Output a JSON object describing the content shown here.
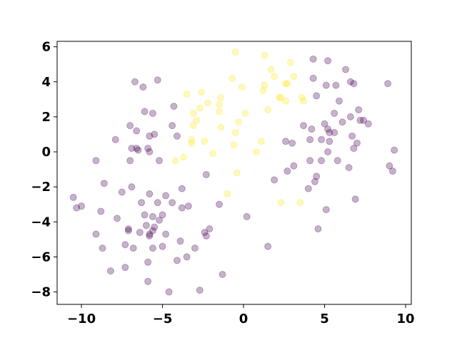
{
  "chart_data": {
    "type": "scatter",
    "xlim": [
      -11.5,
      10.35
    ],
    "ylim": [
      -8.71,
      6.31
    ],
    "xticks": [
      {
        "value": -10,
        "label": "−10"
      },
      {
        "value": -5,
        "label": "−5"
      },
      0,
      5,
      10
    ],
    "yticks": [
      {
        "value": -8,
        "label": "−8"
      },
      {
        "value": -6,
        "label": "−6"
      },
      {
        "value": -4,
        "label": "−4"
      },
      {
        "value": -2,
        "label": "−2"
      },
      0,
      2,
      4,
      6
    ],
    "grid": false,
    "alpha": 0.3,
    "series": [
      {
        "color": "#fde725",
        "x": [
          -0.5,
          1.3,
          1.7,
          2.9,
          -0.7,
          -0.1,
          1.2,
          1.3,
          1.9,
          2.6,
          2.7,
          3.1,
          -3.5,
          -2.6,
          -1.4,
          -2.2,
          -1.5,
          -3.1,
          -2.9,
          -2.7,
          -3.1,
          -1.5,
          0.1,
          1.5,
          2.2,
          2.3,
          2.6,
          3.6,
          3.7,
          -0.3,
          -0.5,
          -1.4,
          -2.4,
          -3.2,
          -3.2,
          -1.9,
          -3.7,
          -4.2,
          -0.6,
          0.8,
          1.1,
          -0.4,
          -1.0,
          2.3,
          3.5
        ],
        "y": [
          5.7,
          5.5,
          4.7,
          5.1,
          4.2,
          3.7,
          3.5,
          3.8,
          4.3,
          3.9,
          3.9,
          4.3,
          3.3,
          3.4,
          3.1,
          2.8,
          2.7,
          1.5,
          1.8,
          2.5,
          2.2,
          2.3,
          2.2,
          2.4,
          3.1,
          3.1,
          2.9,
          3.1,
          2.9,
          1.7,
          1.1,
          1.4,
          0.6,
          0.7,
          0.5,
          -0.1,
          -0.3,
          -0.5,
          0.4,
          0.0,
          0.6,
          -1.2,
          -2.4,
          -2.9,
          -2.9
        ]
      },
      {
        "color": "#440154",
        "x": [
          -6.7,
          -6.2,
          -5.3,
          -4.3,
          -6.1,
          -5.6,
          -7.9,
          -7.0,
          -6.6,
          -5.5,
          -5.8,
          -6.9,
          -6.6,
          -6.5,
          -5.9,
          -5.8,
          -7.0,
          -5.2,
          -9.1,
          -4.4,
          -4.1,
          -8.6,
          -6.9,
          -7.5,
          -3.8,
          -2.3,
          -10.5,
          -10.3,
          -10.0,
          -8.8,
          -7.8,
          -6.3,
          -5.8,
          -5.3,
          -4.8,
          -4.4,
          -3.8,
          -3.4,
          -6.1,
          -5.6,
          -5.0,
          -5.2,
          -5.5,
          -5.6,
          -6.0,
          -7.1,
          -7.1,
          -6.4,
          -5.8,
          -5.8,
          -4.8,
          -3.9,
          -7.3,
          -6.8,
          -5.6,
          -5.0,
          -8.7,
          -9.1,
          -3.0,
          -3.5,
          -4.1,
          -5.9,
          -7.3,
          -8.2,
          -5.9,
          -4.6,
          -2.7,
          -2.4,
          -2.3,
          -2.1,
          -1.5,
          -1.3,
          0.2,
          1.5,
          1.9,
          2.7,
          3.1,
          2.6,
          3.0,
          4.0,
          4.1,
          4.1,
          4.2,
          4.8,
          4.8,
          4.5,
          4.4,
          4.6,
          5.1,
          5.2,
          5.3,
          5.2,
          5.3,
          5.6,
          5.8,
          5.0,
          5.6,
          6.1,
          3.7,
          6.5,
          6.6,
          6.8,
          7.0,
          6.7,
          7.1,
          7.2,
          7.4,
          7.7,
          6.9,
          5.9,
          4.5,
          4.3,
          4.3,
          5.2,
          5.1,
          5.7,
          6.3,
          6.6,
          6.8,
          8.9,
          9.0,
          9.2,
          9.3
        ],
        "y": [
          4.0,
          3.7,
          4.1,
          2.6,
          2.3,
          2.2,
          0.7,
          1.5,
          1.2,
          1.0,
          0.9,
          0.2,
          0.2,
          0.1,
          0.2,
          0.0,
          -0.5,
          -0.5,
          -0.5,
          1.5,
          0.9,
          -1.8,
          -2.0,
          -2.3,
          -2.1,
          -1.3,
          -2.6,
          -3.2,
          -3.1,
          -3.4,
          -3.8,
          -2.9,
          -2.4,
          -2.9,
          -2.5,
          -2.9,
          -3.2,
          -3.1,
          -3.6,
          -3.7,
          -3.6,
          -3.9,
          -4.3,
          -4.5,
          -4.2,
          -4.4,
          -4.5,
          -4.6,
          -4.7,
          -4.8,
          -4.7,
          -5.1,
          -5.3,
          -5.5,
          -5.5,
          -5.4,
          -5.5,
          -4.7,
          -5.5,
          -6.0,
          -6.2,
          -6.3,
          -6.6,
          -6.8,
          -7.4,
          -8.0,
          -7.9,
          -4.6,
          -4.8,
          -4.4,
          -3.0,
          -7.0,
          -3.7,
          -5.4,
          -1.6,
          -1.1,
          -0.8,
          0.6,
          0.5,
          -2.1,
          -0.5,
          0.7,
          1.3,
          0.7,
          -0.5,
          -1.4,
          -1.7,
          -4.4,
          -3.3,
          1.3,
          1.1,
          0.0,
          0.6,
          1.1,
          -0.5,
          1.6,
          2.2,
          1.7,
          1.5,
          -0.9,
          2.0,
          0.2,
          0.5,
          0.9,
          2.4,
          1.8,
          1.8,
          1.6,
          -2.7,
          2.9,
          3.2,
          4.2,
          5.3,
          5.2,
          3.8,
          3.8,
          4.7,
          4.0,
          3.9,
          3.9,
          -0.8,
          -1.1,
          0.1
        ]
      }
    ]
  }
}
